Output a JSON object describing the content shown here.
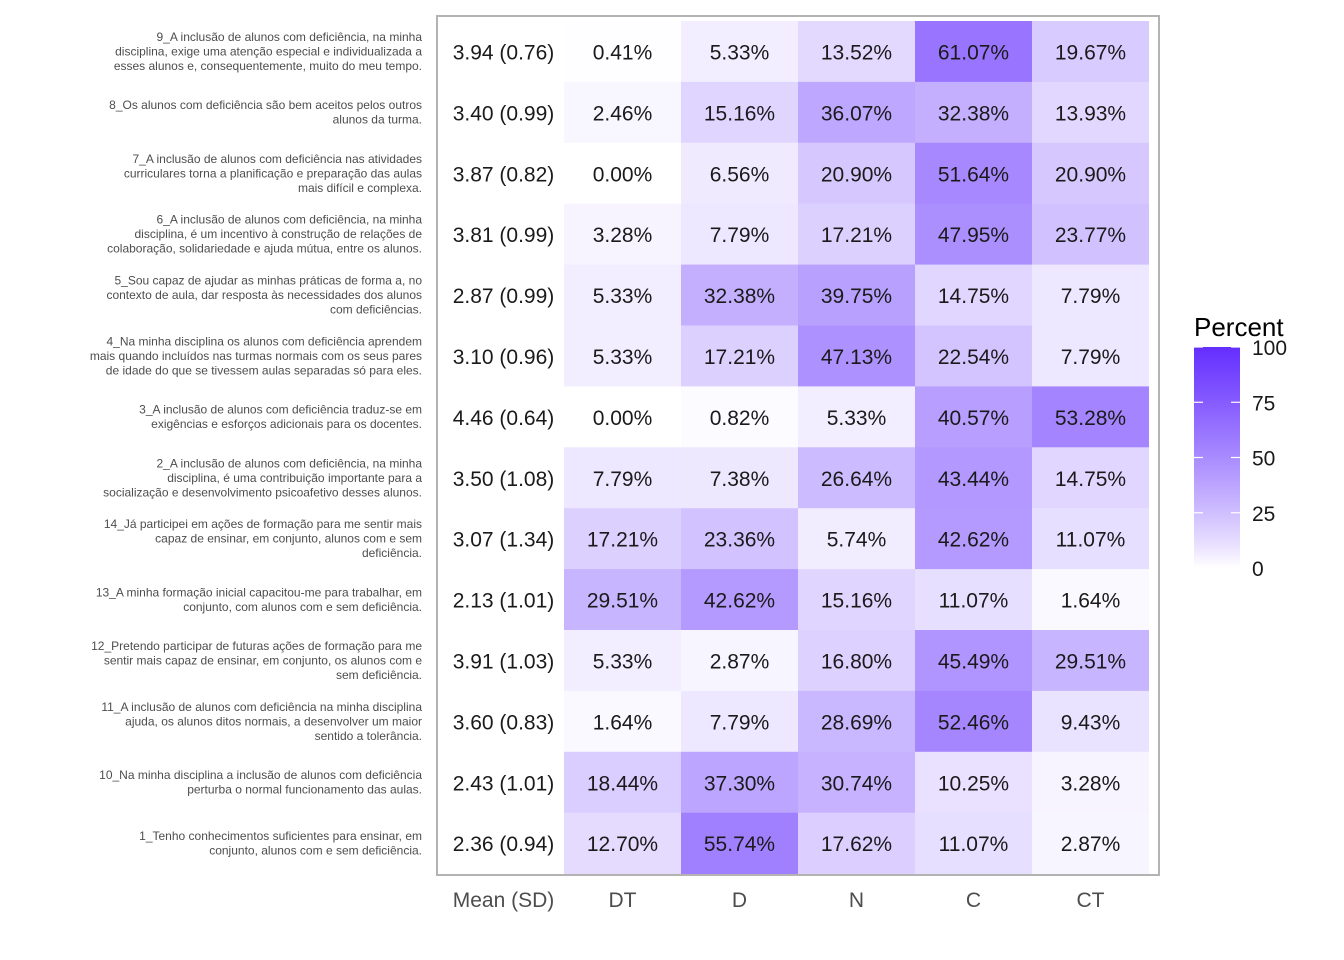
{
  "chart_data": {
    "type": "heatmap",
    "columns": [
      "Mean (SD)",
      "DT",
      "D",
      "N",
      "C",
      "CT"
    ],
    "rows": [
      {
        "label_lines": [
          "9_A inclusão de alunos com deficiência, na minha",
          "disciplina, exige uma atenção especial e individualizada a",
          "esses alunos e, consequentemente, muito do meu tempo."
        ],
        "mean_sd": "3.94 (0.76)",
        "values": [
          0.41,
          5.33,
          13.52,
          61.07,
          19.67
        ]
      },
      {
        "label_lines": [
          "8_Os alunos com deficiência são bem aceitos pelos outros",
          "alunos da turma."
        ],
        "mean_sd": "3.40 (0.99)",
        "values": [
          2.46,
          15.16,
          36.07,
          32.38,
          13.93
        ]
      },
      {
        "label_lines": [
          "7_A inclusão de alunos com deficiência nas atividades",
          "curriculares torna a planificação e preparação das aulas",
          "mais difícil e complexa."
        ],
        "mean_sd": "3.87 (0.82)",
        "values": [
          0.0,
          6.56,
          20.9,
          51.64,
          20.9
        ]
      },
      {
        "label_lines": [
          "6_A inclusão de alunos com deficiência, na minha",
          "disciplina, é um incentivo à construção de relações de",
          "colaboração, solidariedade e ajuda mútua, entre os alunos."
        ],
        "mean_sd": "3.81 (0.99)",
        "values": [
          3.28,
          7.79,
          17.21,
          47.95,
          23.77
        ]
      },
      {
        "label_lines": [
          "5_Sou capaz de ajudar as minhas práticas de forma a, no",
          "contexto de aula, dar resposta às necessidades dos alunos",
          "com deficiências."
        ],
        "mean_sd": "2.87 (0.99)",
        "values": [
          5.33,
          32.38,
          39.75,
          14.75,
          7.79
        ]
      },
      {
        "label_lines": [
          "4_Na minha disciplina os alunos com deficiência aprendem",
          "mais quando incluídos nas turmas normais com os seus pares",
          "de idade do que se tivessem aulas separadas só para eles."
        ],
        "mean_sd": "3.10 (0.96)",
        "values": [
          5.33,
          17.21,
          47.13,
          22.54,
          7.79
        ]
      },
      {
        "label_lines": [
          "3_A inclusão de alunos com deficiência traduz-se em",
          "exigências e esforços adicionais para os docentes."
        ],
        "mean_sd": "4.46 (0.64)",
        "values": [
          0.0,
          0.82,
          5.33,
          40.57,
          53.28
        ]
      },
      {
        "label_lines": [
          "2_A inclusão de alunos com deficiência, na minha",
          "disciplina, é uma contribuição importante para a",
          "socialização e desenvolvimento psicoafetivo desses alunos."
        ],
        "mean_sd": "3.50 (1.08)",
        "values": [
          7.79,
          7.38,
          26.64,
          43.44,
          14.75
        ]
      },
      {
        "label_lines": [
          "14_Já participei em ações de formação para me sentir mais",
          "capaz de ensinar, em conjunto, alunos com e sem",
          "deficiência."
        ],
        "mean_sd": "3.07 (1.34)",
        "values": [
          17.21,
          23.36,
          5.74,
          42.62,
          11.07
        ]
      },
      {
        "label_lines": [
          "13_A minha formação inicial capacitou-me para trabalhar, em",
          "conjunto, com alunos com e sem deficiência."
        ],
        "mean_sd": "2.13 (1.01)",
        "values": [
          29.51,
          42.62,
          15.16,
          11.07,
          1.64
        ]
      },
      {
        "label_lines": [
          "12_Pretendo participar de futuras ações de formação para me",
          "sentir mais capaz de ensinar, em conjunto, os alunos com e",
          "sem deficiência."
        ],
        "mean_sd": "3.91 (1.03)",
        "values": [
          5.33,
          2.87,
          16.8,
          45.49,
          29.51
        ]
      },
      {
        "label_lines": [
          "11_A inclusão de alunos com deficiência na minha disciplina",
          "ajuda, os alunos ditos normais, a desenvolver um maior",
          "sentido a tolerância."
        ],
        "mean_sd": "3.60 (0.83)",
        "values": [
          1.64,
          7.79,
          28.69,
          52.46,
          9.43
        ]
      },
      {
        "label_lines": [
          "10_Na minha disciplina a inclusão de alunos com deficiência",
          "perturba o normal funcionamento das aulas."
        ],
        "mean_sd": "2.43 (1.01)",
        "values": [
          18.44,
          37.3,
          30.74,
          10.25,
          3.28
        ]
      },
      {
        "label_lines": [
          "1_Tenho conhecimentos suficientes para ensinar, em",
          "conjunto, alunos com e sem deficiência."
        ],
        "mean_sd": "2.36 (0.94)",
        "values": [
          12.7,
          55.74,
          17.62,
          11.07,
          2.87
        ]
      }
    ],
    "value_format": "percent_2dp",
    "legend": {
      "title": "Percent",
      "range": [
        0,
        100
      ],
      "ticks": [
        0,
        25,
        50,
        75,
        100
      ],
      "position": "right",
      "color_low": "#ffffff",
      "color_high": "#0000ff"
    },
    "grid": false
  }
}
